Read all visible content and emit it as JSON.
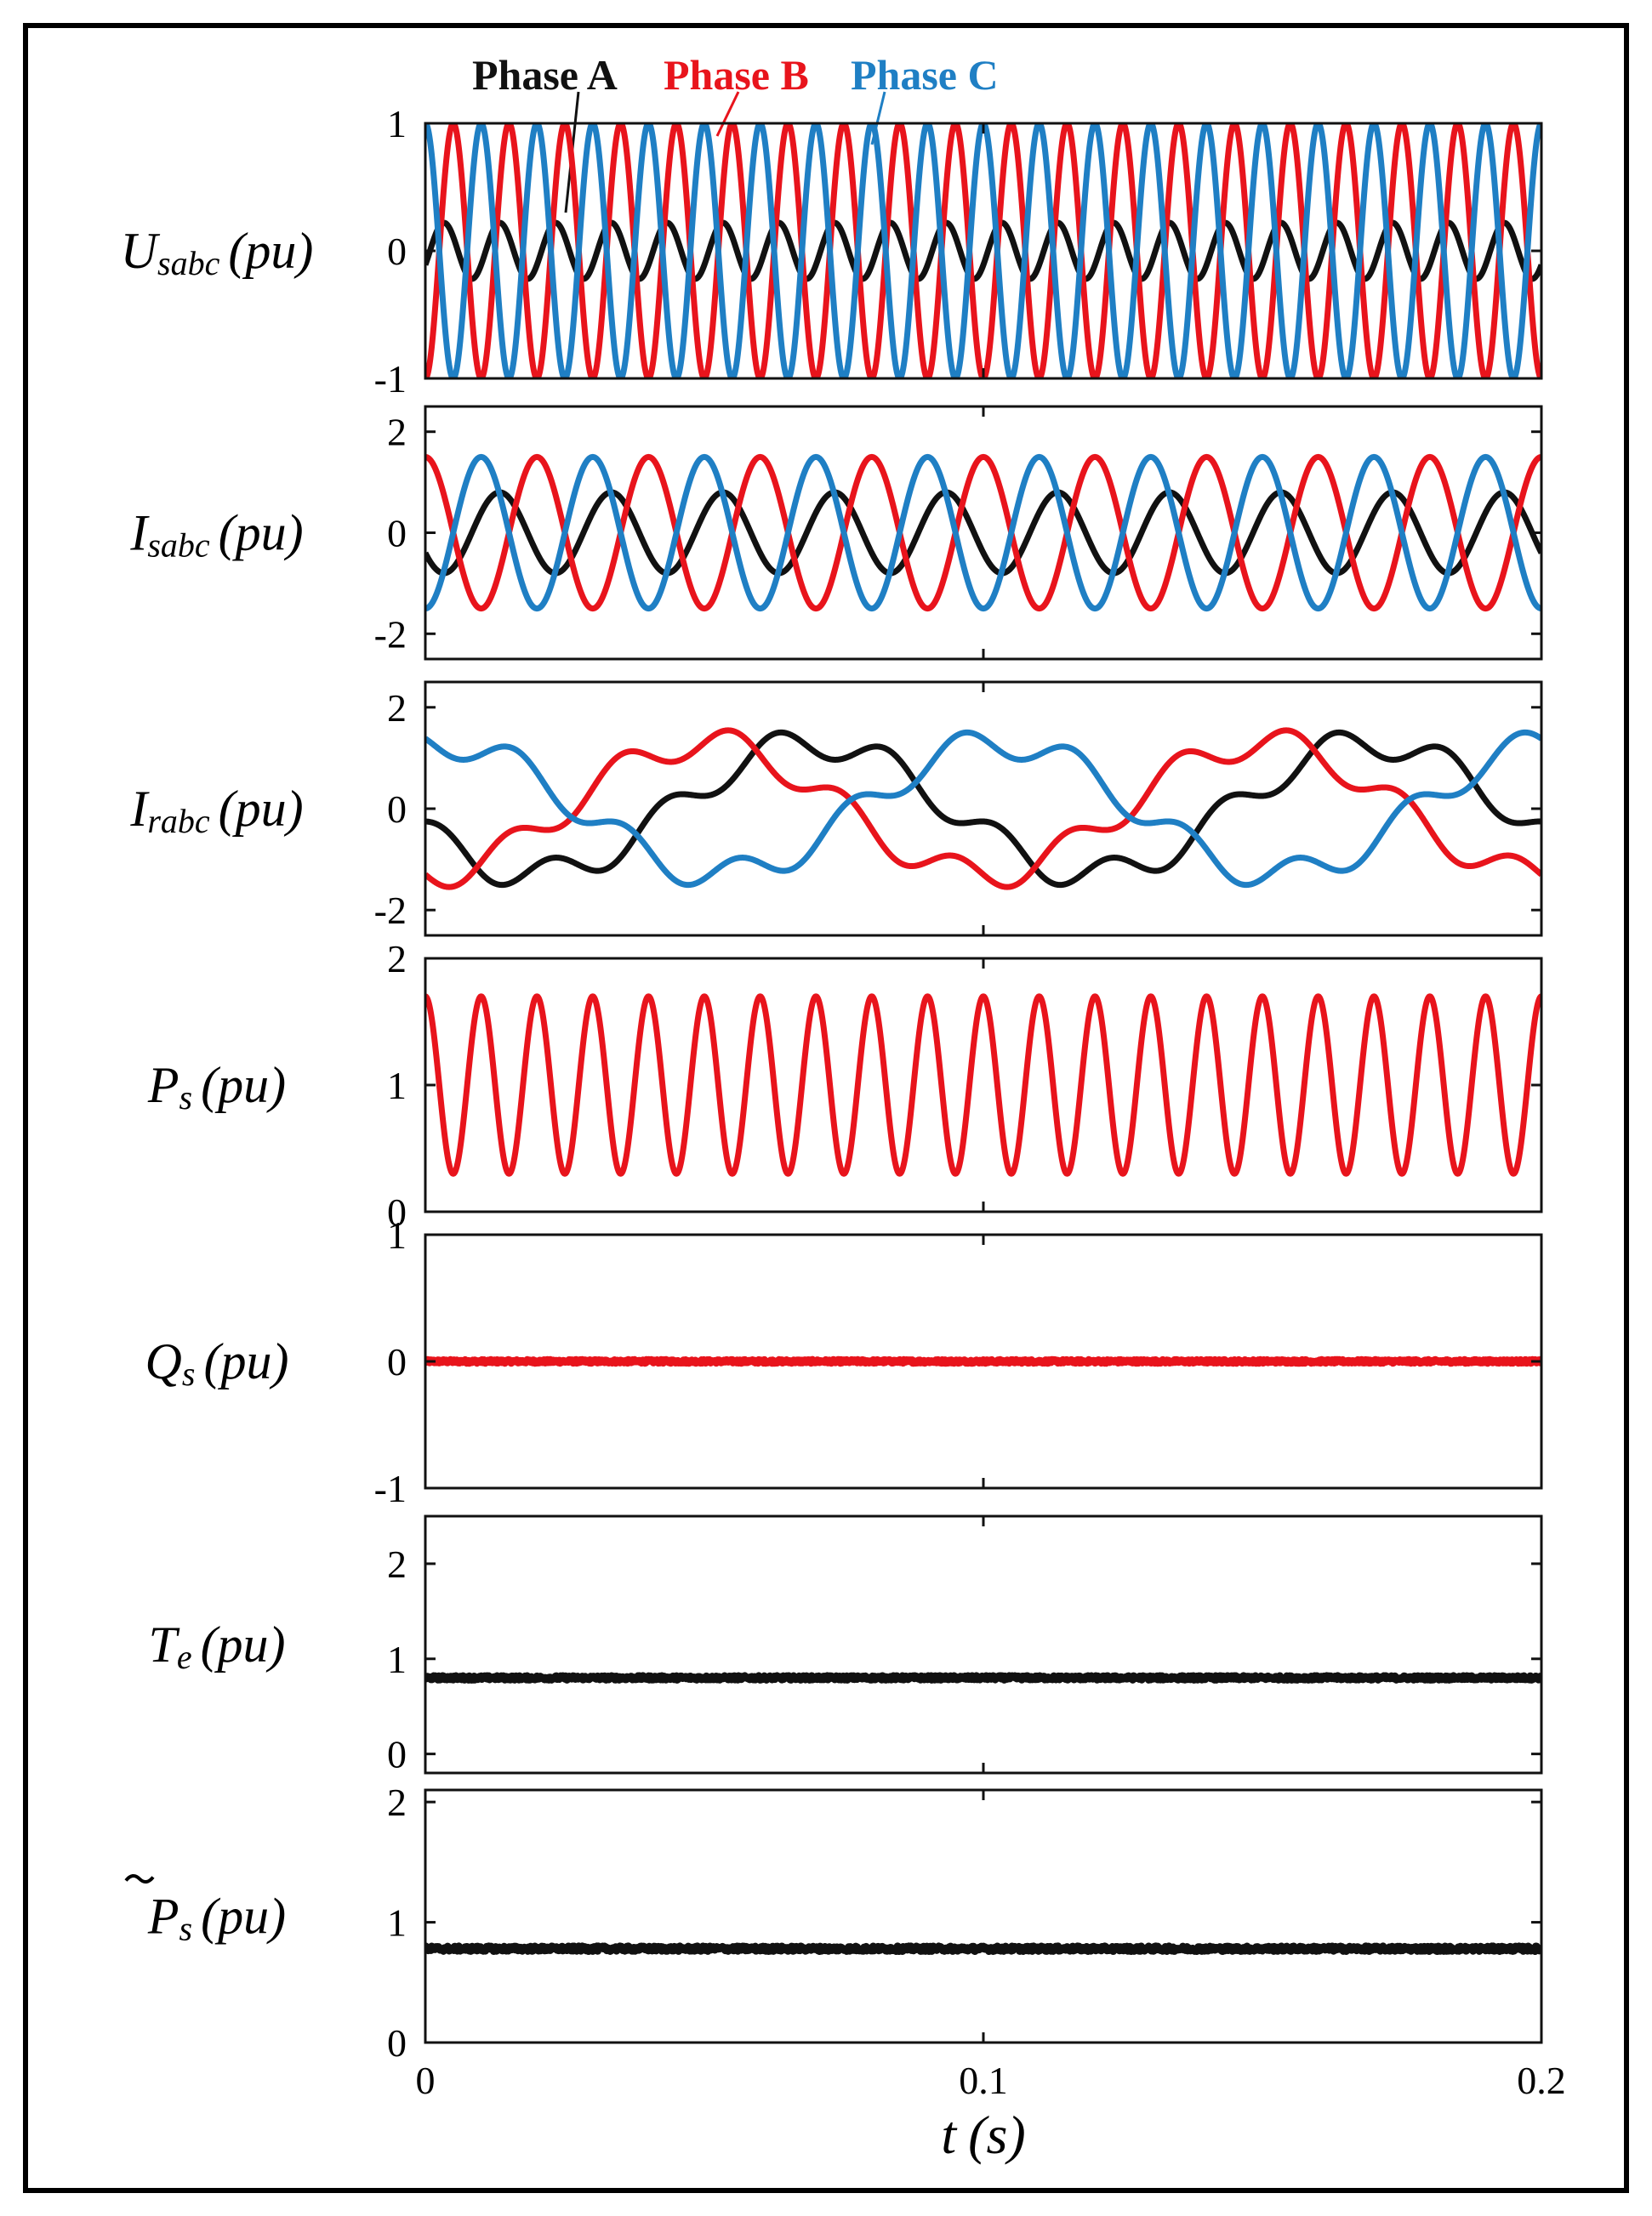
{
  "colors": {
    "phase_a": "#111111",
    "phase_b": "#e8141c",
    "phase_c": "#1f7fc4",
    "frame": "#000000"
  },
  "legend": [
    {
      "label": "Phase A",
      "color": "#111111"
    },
    {
      "label": "Phase B",
      "color": "#e8141c"
    },
    {
      "label": "Phase C",
      "color": "#1f7fc4"
    }
  ],
  "x_axis": {
    "label_main": "t",
    "label_unit": "(s)",
    "ticks": [
      0,
      0.1,
      0.2
    ],
    "tick_labels": [
      "0",
      "0.1",
      "0.2"
    ],
    "xlim": [
      0,
      0.2
    ]
  },
  "chart_data": [
    {
      "type": "line",
      "ylabel": {
        "main": "U",
        "sub": "sabc",
        "unit": "(pu)"
      },
      "ylim": [
        -1,
        1
      ],
      "yticks": [
        1,
        0,
        -1
      ],
      "ytick_labels": [
        "1",
        "0",
        "-1"
      ],
      "series": [
        {
          "name": "Phase A",
          "color": "#111111",
          "amplitude": 0.22,
          "frequency_hz": 100,
          "phase_deg": -30,
          "offset": 0
        },
        {
          "name": "Phase B",
          "color": "#e8141c",
          "amplitude": 1.0,
          "frequency_hz": 100,
          "phase_deg": -90,
          "offset": 0
        },
        {
          "name": "Phase C",
          "color": "#1f7fc4",
          "amplitude": 1.0,
          "frequency_hz": 100,
          "phase_deg": 90,
          "offset": 0
        }
      ]
    },
    {
      "type": "line",
      "ylabel": {
        "main": "I",
        "sub": "sabc",
        "unit": "(pu)"
      },
      "ylim": [
        -2.5,
        2.5
      ],
      "yticks": [
        2,
        0,
        -2
      ],
      "ytick_labels": [
        "2",
        "0",
        "-2"
      ],
      "series": [
        {
          "name": "Phase A",
          "color": "#111111",
          "amplitude": 0.8,
          "frequency_hz": 50,
          "phase_deg": 210,
          "offset": 0
        },
        {
          "name": "Phase B",
          "color": "#e8141c",
          "amplitude": 1.5,
          "frequency_hz": 50,
          "phase_deg": 90,
          "offset": 0
        },
        {
          "name": "Phase C",
          "color": "#1f7fc4",
          "amplitude": 1.5,
          "frequency_hz": 50,
          "phase_deg": -90,
          "offset": 0
        }
      ]
    },
    {
      "type": "line",
      "ylabel": {
        "main": "I",
        "sub": "rabc",
        "unit": "(pu)"
      },
      "ylim": [
        -2.5,
        2.5
      ],
      "yticks": [
        2,
        0,
        -2
      ],
      "ytick_labels": [
        "2",
        "0",
        "-2"
      ],
      "series": [
        {
          "name": "Phase A",
          "color": "#111111",
          "amplitude": 1.3,
          "frequency_hz": 10,
          "phase_deg": 200,
          "offset": 0,
          "ripple_amplitude": 0.3,
          "ripple_frequency_hz": 50
        },
        {
          "name": "Phase B",
          "color": "#e8141c",
          "amplitude": 1.3,
          "frequency_hz": 10,
          "phase_deg": 270,
          "offset": 0,
          "ripple_amplitude": 0.3,
          "ripple_frequency_hz": 50
        },
        {
          "name": "Phase C",
          "color": "#1f7fc4",
          "amplitude": 1.3,
          "frequency_hz": 10,
          "phase_deg": 80,
          "offset": 0,
          "ripple_amplitude": 0.3,
          "ripple_frequency_hz": 50
        }
      ]
    },
    {
      "type": "line",
      "ylabel": {
        "main": "P",
        "sub": "s",
        "unit": "(pu)"
      },
      "ylim": [
        0,
        2
      ],
      "yticks": [
        2,
        1,
        0
      ],
      "ytick_labels": [
        "2",
        "1",
        "0"
      ],
      "series": [
        {
          "name": "Phase B",
          "color": "#e8141c",
          "amplitude": 0.7,
          "frequency_hz": 100,
          "phase_deg": 90,
          "offset": 1.0
        }
      ]
    },
    {
      "type": "line",
      "ylabel": {
        "main": "Q",
        "sub": "s",
        "unit": "(pu)"
      },
      "ylim": [
        -1,
        1
      ],
      "yticks": [
        1,
        0,
        -1
      ],
      "ytick_labels": [
        "1",
        "0",
        "-1"
      ],
      "series": [
        {
          "name": "Phase B",
          "color": "#e8141c",
          "amplitude": 0,
          "frequency_hz": 0,
          "phase_deg": 0,
          "offset": 0,
          "noise": 0.012
        }
      ]
    },
    {
      "type": "line",
      "ylabel": {
        "main": "T",
        "sub": "e",
        "unit": "(pu)"
      },
      "ylim": [
        -0.2,
        2.5
      ],
      "yticks": [
        2,
        1,
        0
      ],
      "ytick_labels": [
        "2",
        "1",
        "0"
      ],
      "series": [
        {
          "name": "Phase A",
          "color": "#111111",
          "amplitude": 0,
          "frequency_hz": 0,
          "phase_deg": 0,
          "offset": 0.8,
          "noise": 0.02
        }
      ]
    },
    {
      "type": "line",
      "ylabel": {
        "main": "P",
        "sub": "s",
        "unit": "(pu)",
        "tilde": true
      },
      "ylim": [
        0,
        2.1
      ],
      "yticks": [
        2,
        1,
        0
      ],
      "ytick_labels": [
        "2",
        "1",
        "0"
      ],
      "series": [
        {
          "name": "Phase A",
          "color": "#111111",
          "amplitude": 0,
          "frequency_hz": 0,
          "phase_deg": 0,
          "offset": 0.78,
          "noise": 0.02
        }
      ]
    }
  ]
}
